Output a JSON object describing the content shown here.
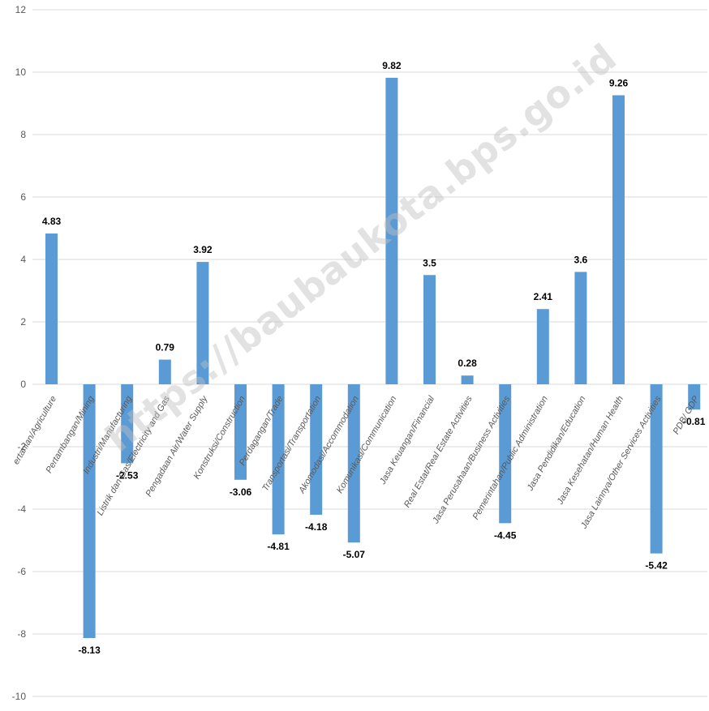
{
  "chart_data": {
    "type": "bar",
    "title": "",
    "xlabel": "",
    "ylabel": "",
    "ylim": [
      -10,
      12
    ],
    "yticks": [
      12,
      10,
      8,
      6,
      4,
      2,
      0,
      -2,
      -4,
      -6,
      -8,
      -10
    ],
    "grid": true,
    "legend": "none",
    "bar_color": "#5b9bd5",
    "categories": [
      "ertanian/Agriculture",
      "Pertambangan/Mining",
      "Industri/Manufacturing",
      "Listrik dan Gas/Electricity and Gas",
      "Pengadaan Air/Water Supply",
      "Konstruksi/Construction",
      "Perdagangan/Trade",
      "Transportasi/Transportation",
      "Akomodasi/Accommodation",
      "Komunikasi/Communication",
      "Jasa Keuangan/Financial",
      "Real Estat/Real Estate Activities",
      "Jasa Perusahaan/Business Activities",
      "Pemerintahan/Public Administration",
      "Jasa Pendidikan/Education",
      "Jasa Kesehatan/Human Health",
      "Jasa Lainnya/Other Services Activities",
      "PDB/ GDP"
    ],
    "values": [
      4.83,
      -8.13,
      -2.53,
      0.79,
      3.92,
      -3.06,
      -4.81,
      -4.18,
      -5.07,
      9.82,
      3.5,
      0.28,
      -4.45,
      2.41,
      3.6,
      9.26,
      -5.42,
      -0.81
    ],
    "data_labels": [
      "4.83",
      "-8.13",
      "-2.53",
      "0.79",
      "3.92",
      "-3.06",
      "-4.81",
      "-4.18",
      "-5.07",
      "9.82",
      "3.5",
      "0.28",
      "-4.45",
      "2.41",
      "3.6",
      "9.26",
      "-5.42",
      "-0.81"
    ],
    "watermark": "https://baubaukota.bps.go.id"
  }
}
